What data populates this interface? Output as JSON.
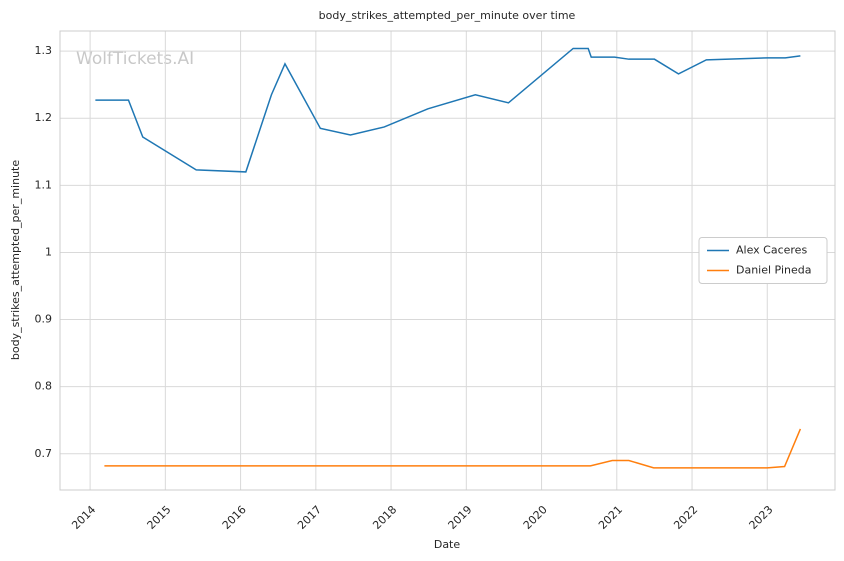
{
  "chart_data": {
    "type": "line",
    "title": "body_strikes_attempted_per_minute over time",
    "watermark": "WolfTickets.AI",
    "x_label": "Date",
    "y_label": "body_strikes_attempted_per_minute",
    "xlim": [
      2013.6,
      2023.9
    ],
    "xticks": [
      2014,
      2015,
      2016,
      2017,
      2018,
      2019,
      2020,
      2021,
      2022,
      2023
    ],
    "ylim": [
      0.646,
      1.33
    ],
    "yticks": [
      0.7,
      0.8,
      0.9,
      1.0,
      1.1,
      1.2,
      1.3
    ],
    "grid": true,
    "legend": "center right",
    "series": [
      {
        "name": "Alex Caceres",
        "color": "#1f77b4",
        "x": [
          2014.07,
          2014.51,
          2014.7,
          2015.41,
          2016.07,
          2016.41,
          2016.59,
          2017.06,
          2017.46,
          2017.91,
          2018.49,
          2019.12,
          2019.56,
          2020.42,
          2020.62,
          2020.66,
          2020.97,
          2021.16,
          2021.5,
          2021.82,
          2022.19,
          2023.0,
          2023.24,
          2023.44
        ],
        "values": [
          1.227,
          1.227,
          1.172,
          1.123,
          1.12,
          1.235,
          1.281,
          1.185,
          1.175,
          1.187,
          1.214,
          1.235,
          1.223,
          1.304,
          1.304,
          1.291,
          1.291,
          1.288,
          1.288,
          1.266,
          1.287,
          1.29,
          1.29,
          1.293
        ]
      },
      {
        "name": "Daniel Pineda",
        "color": "#ff7f0e",
        "x": [
          2014.19,
          2020.65,
          2020.94,
          2021.16,
          2021.49,
          2023.0,
          2023.23,
          2023.44
        ],
        "values": [
          0.682,
          0.682,
          0.69,
          0.69,
          0.679,
          0.679,
          0.681,
          0.737
        ]
      }
    ]
  }
}
